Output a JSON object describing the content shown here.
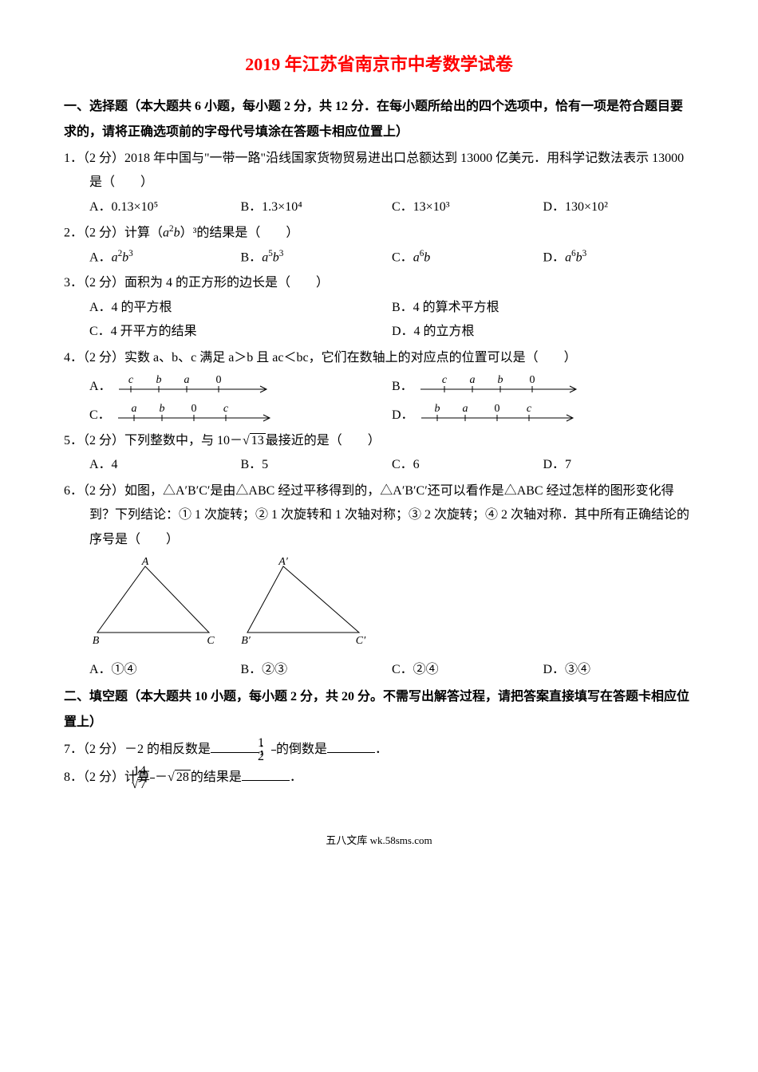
{
  "title": "2019 年江苏省南京市中考数学试卷",
  "section1": {
    "header": "一、选择题（本大题共 6 小题，每小题 2 分，共 12 分．在每小题所给出的四个选项中，恰有一项是符合题目要求的，请将正确选项前的字母代号填涂在答题卡相应位置上）",
    "q1": {
      "stem": "1．（2 分）2018 年中国与\"一带一路\"沿线国家货物贸易进出口总额达到 13000 亿美元．用科学记数法表示 13000 是（　　）",
      "A": "A．0.13×10⁵",
      "B": "B．1.3×10⁴",
      "C": "C．13×10³",
      "D": "D．130×10²"
    },
    "q2": {
      "stem_prefix": "2．（2 分）计算（",
      "stem_expr_a": "a",
      "stem_expr_p1": "2",
      "stem_expr_b": "b",
      "stem_suffix": "）³的结果是（　　）",
      "A_pre": "A．",
      "A_a": "a",
      "A_p1": "2",
      "A_b": "b",
      "A_p2": "3",
      "B_pre": "B．",
      "B_a": "a",
      "B_p1": "5",
      "B_b": "b",
      "B_p2": "3",
      "C_pre": "C．",
      "C_a": "a",
      "C_p1": "6",
      "C_b": "b",
      "D_pre": "D．",
      "D_a": "a",
      "D_p1": "6",
      "D_b": "b",
      "D_p2": "3"
    },
    "q3": {
      "stem": "3．（2 分）面积为 4 的正方形的边长是（　　）",
      "A": "A．4 的平方根",
      "B": "B．4 的算术平方根",
      "C": "C．4 开平方的结果",
      "D": "D．4 的立方根"
    },
    "q4": {
      "stem": "4．（2 分）实数 a、b、c 满足 a＞b 且 ac＜bc，它们在数轴上的对应点的位置可以是（　　）",
      "A_label": "A．",
      "B_label": "B．",
      "C_label": "C．",
      "D_label": "D．",
      "A": {
        "labels": [
          "c",
          "b",
          "a",
          "0"
        ],
        "markPos": [
          20,
          55,
          90,
          130
        ],
        "arrowEnd": 190
      },
      "B": {
        "labels": [
          "c",
          "a",
          "b",
          "0"
        ],
        "markPos": [
          35,
          70,
          105,
          145
        ],
        "arrowEnd": 200
      },
      "C": {
        "labels": [
          "a",
          "b",
          "0",
          "c"
        ],
        "markPos": [
          25,
          60,
          100,
          140
        ],
        "arrowEnd": 195
      },
      "D": {
        "labels": [
          "b",
          "a",
          "0",
          "c"
        ],
        "markPos": [
          25,
          60,
          100,
          140
        ],
        "arrowEnd": 195
      }
    },
    "q5": {
      "stem_prefix": "5．（2 分）下列整数中，与 10－",
      "stem_rad": "13",
      "stem_suffix": "最接近的是（　　）",
      "A": "A．4",
      "B": "B．5",
      "C": "C．6",
      "D": "D．7"
    },
    "q6": {
      "stem": "6．（2 分）如图，△A′B′C′是由△ABC 经过平移得到的，△A′B′C′还可以看作是△ABC 经过怎样的图形变化得到？下列结论：① 1 次旋转；② 1 次旋转和 1 次轴对称；③ 2 次旋转；④ 2 次轴对称．其中所有正确结论的序号是（　　）",
      "tri1": {
        "A": "A",
        "B": "B",
        "C": "C"
      },
      "tri2": {
        "A": "A′",
        "B": "B′",
        "C": "C′"
      },
      "A": "A．①④",
      "B": "B．②③",
      "C": "C．②④",
      "D": "D．③④"
    }
  },
  "section2": {
    "header": "二、填空题（本大题共 10 小题，每小题 2 分，共 20 分。不需写出解答过程，请把答案直接填写在答题卡相应位置上）",
    "q7": {
      "p1": "7．（2 分）－2 的相反数是",
      "p2": "；",
      "frac_num": "1",
      "frac_den": "2",
      "p3": "的倒数是",
      "p4": "．"
    },
    "q8": {
      "p1": "8．（2 分）计算",
      "frac_num": "14",
      "frac_den_rad": "7",
      "p2": "－",
      "rad": "28",
      "p3": "的结果是",
      "p4": "．"
    }
  },
  "footer": "五八文库 wk.58sms.com",
  "colors": {
    "title": "#ff0000",
    "text": "#000000",
    "background": "#ffffff"
  }
}
